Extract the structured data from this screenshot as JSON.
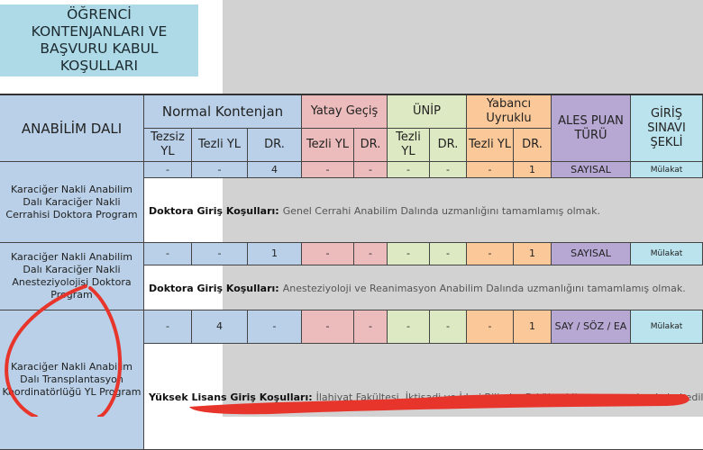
{
  "title": "ÖĞRENCİ\nKONTENJANLARI VE\nBAŞVURU KABUL\nKOŞULLARI",
  "colors": {
    "blue": "#b9d0e8",
    "pink": "#ecbcbc",
    "green": "#dce9c2",
    "orange": "#fbc999",
    "purple": "#b7a8d3",
    "cyan": "#bbe3ed"
  },
  "headers": {
    "department": "ANABİLİM DALI",
    "normal": "Normal Kontenjan",
    "yatay": "Yatay Geçiş",
    "unip": "ÜNİP",
    "yabanci": "Yabancı Uyruklu",
    "ales": "ALES PUAN TÜRÜ",
    "giris": "GİRİŞ SINAVI ŞEKLİ",
    "sub": [
      "Tezsiz YL",
      "Tezli YL",
      "DR.",
      "Tezli YL",
      "DR.",
      "Tezli YL",
      "DR.",
      "Tezli YL",
      "DR."
    ]
  },
  "rows": [
    {
      "department": "Karaciğer Nakli Anabilim Dalı Karaciğer Nakli Cerrahisi Doktora Program",
      "values": [
        "-",
        "-",
        "4",
        "-",
        "-",
        "-",
        "-",
        "-",
        "1"
      ],
      "ales": "SAYISAL",
      "giris": "Mülakat",
      "cond_label": "Doktora Giriş Koşulları:",
      "cond_text": "Genel Cerrahi Anabilim Dalında uzmanlığını tamamlamış olmak."
    },
    {
      "department": "Karaciğer Nakli Anabilim Dalı Karaciğer Nakli Anesteziyolojisi Doktora Program",
      "values": [
        "-",
        "-",
        "1",
        "-",
        "-",
        "-",
        "-",
        "-",
        "1"
      ],
      "ales": "SAYISAL",
      "giris": "Mülakat",
      "cond_label": "Doktora Giriş Koşulları:",
      "cond_text": "Anesteziyoloji ve Reanimasyon Anabilim Dalında uzmanlığını tamamlamış olmak."
    },
    {
      "department": "Karaciğer Nakli Anabilim Dalı Transplantasyon Koordinatörlüğü YL Program",
      "values": [
        "-",
        "4",
        "-",
        "-",
        "-",
        "-",
        "-",
        "-",
        "1"
      ],
      "ales": "SAY / SÖZ / EA",
      "giris": "Mülakat",
      "cond_label": "Yüksek Lisans Giriş Koşulları:",
      "cond_text": "İlahiyat Fakültesi,  İktisadi ve İdari Bilimler Fakültesi lisans mezunları kabul edilir."
    }
  ]
}
